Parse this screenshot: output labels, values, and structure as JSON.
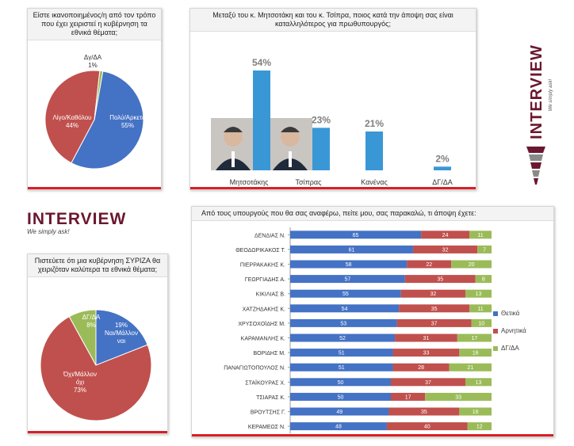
{
  "colors": {
    "positive": "#4472c4",
    "negative": "#c0504d",
    "neutral": "#9bbb59",
    "leader_bar": "#3a97d6",
    "brand": "#6b1730",
    "accent_red": "#d81f26"
  },
  "brand": {
    "name": "INTERVIEW",
    "tagline": "We simply ask!"
  },
  "chart_data": [
    {
      "type": "pie",
      "title": "Είστε ικανοποιημένος/η από τον τρόπο που έχει χειριστεί η κυβέρνηση τα εθνικά θέματα;",
      "slices": [
        {
          "label": "Πολύ/Αρκετά",
          "value": 55,
          "display": "55%"
        },
        {
          "label": "Λίγο/Καθόλου",
          "value": 44,
          "display": "44%"
        },
        {
          "label": "Δγ/ΔΑ",
          "value": 1,
          "display": "1%"
        }
      ]
    },
    {
      "type": "bar",
      "title": "Μεταξύ του κ. Μητσοτάκη και του κ. Τσίπρα, ποιος κατά την άποψη σας είναι καταλληλότερος για πρωθυπουργός;",
      "categories": [
        "Μητσοτάκης",
        "Τσίπρας",
        "Κανένας",
        "ΔΓ/ΔΑ"
      ],
      "values": [
        54,
        23,
        21,
        2
      ],
      "value_labels": [
        "54%",
        "23%",
        "21%",
        "2%"
      ],
      "ylim": [
        0,
        60
      ]
    },
    {
      "type": "pie",
      "title": "Πιστεύετε ότι μια κυβέρνηση ΣΥΡΙΖΑ θα χειριζόταν καλύτερα τα εθνικά θέματα;",
      "slices": [
        {
          "label": "Ναι/Μάλλον ναι",
          "value": 19,
          "display": "19%"
        },
        {
          "label": "Όχι/Μάλλον όχι",
          "value": 73,
          "display": "73%"
        },
        {
          "label": "ΔΓ/ΔΑ",
          "value": 8,
          "display": "8%"
        }
      ]
    },
    {
      "type": "bar",
      "orientation": "horizontal",
      "stacked": true,
      "title": "Από τους υπουργούς που θα σας αναφέρω, πείτε μου, σας παρακαλώ, τι άποψη έχετε:",
      "categories": [
        "ΔΕΝΔΙΑΣ Ν.",
        "ΘΕΟΔΩΡΙΚΑΚΟΣ Τ.",
        "ΠΙΕΡΡΑΚΑΚΗΣ Κ.",
        "ΓΕΩΡΓΙΑΔΗΣ Α.",
        "ΚΙΚΙΛΙΑΣ Β.",
        "ΧΑΤΖΗΔΑΚΗΣ Κ.",
        "ΧΡΥΣΟΧΟΪΔΗΣ Μ.",
        "ΚΑΡΑΜΑΝΛΗΣ Κ.",
        "ΒΟΡΙΔΗΣ Μ.",
        "ΠΑΝΑΓΙΩΤΟΠΟΥΛΟΣ Ν.",
        "ΣΤΑΪΚΟΥΡΑΣ Χ.",
        "ΤΣΙΑΡΑΣ Κ.",
        "ΒΡΟΥΤΣΗΣ Γ.",
        "ΚΕΡΑΜΕΩΣ Ν."
      ],
      "series": [
        {
          "name": "Θετικά",
          "values": [
            65,
            61,
            58,
            57,
            55,
            54,
            53,
            52,
            51,
            51,
            50,
            50,
            49,
            48
          ]
        },
        {
          "name": "Αρνητικά",
          "values": [
            24,
            32,
            22,
            35,
            32,
            35,
            37,
            31,
            33,
            28,
            37,
            17,
            35,
            40
          ]
        },
        {
          "name": "ΔΓ/ΔΑ",
          "values": [
            11,
            7,
            20,
            8,
            13,
            11,
            10,
            17,
            16,
            21,
            13,
            33,
            16,
            12
          ]
        }
      ],
      "legend": "right"
    }
  ]
}
